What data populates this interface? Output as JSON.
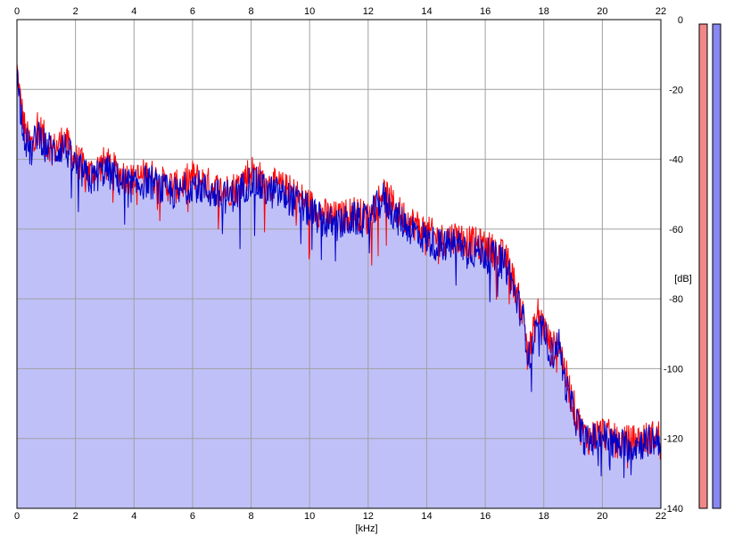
{
  "chart_data": {
    "type": "area",
    "xlabel": "[kHz]",
    "ylabel": "[dB]",
    "xlim": [
      0,
      22
    ],
    "ylim": [
      -140,
      0
    ],
    "x_ticks": [
      "0",
      "2",
      "4",
      "6",
      "8",
      "10",
      "12",
      "14",
      "16",
      "18",
      "20",
      "22"
    ],
    "y_ticks": [
      "0",
      "-20",
      "-40",
      "-60",
      "-80",
      "-100",
      "-120",
      "-140"
    ],
    "grid": true,
    "legend": "none",
    "colors": {
      "fill": "#c0c0f8",
      "left_channel": "#ff0000",
      "right_channel": "#0000c8",
      "meter_left": "#f08888",
      "meter_right": "#8888f0",
      "grid": "#a0a0a0"
    },
    "series": [
      {
        "color": "#ff0000",
        "x": [
          0.0,
          0.1,
          0.3,
          0.5,
          0.7,
          1.0,
          1.3,
          1.6,
          2.0,
          2.5,
          3.0,
          3.5,
          4.0,
          4.5,
          5.0,
          5.5,
          6.0,
          6.5,
          7.0,
          7.5,
          8.0,
          8.5,
          9.0,
          9.5,
          10.0,
          10.5,
          11.0,
          11.5,
          12.0,
          12.5,
          13.0,
          13.5,
          14.0,
          14.5,
          15.0,
          15.5,
          16.0,
          16.5,
          16.8,
          17.0,
          17.3,
          17.5,
          17.8,
          18.0,
          18.3,
          18.5,
          18.7,
          19.0,
          19.3,
          19.5,
          20.0,
          20.5,
          21.0,
          21.5,
          22.0
        ],
        "values": [
          -14,
          -22,
          -33,
          -36,
          -30,
          -35,
          -37,
          -34,
          -40,
          -44,
          -41,
          -44,
          -46,
          -44,
          -47,
          -48,
          -45,
          -47,
          -49,
          -48,
          -43,
          -47,
          -48,
          -50,
          -53,
          -56,
          -57,
          -55,
          -57,
          -49,
          -55,
          -58,
          -61,
          -63,
          -62,
          -64,
          -65,
          -67,
          -70,
          -76,
          -85,
          -95,
          -84,
          -88,
          -95,
          -90,
          -100,
          -110,
          -118,
          -120,
          -118,
          -121,
          -121,
          -120,
          -119
        ]
      },
      {
        "color": "#0000c8",
        "x": [
          0.0,
          0.1,
          0.3,
          0.5,
          0.7,
          1.0,
          1.3,
          1.6,
          2.0,
          2.5,
          3.0,
          3.5,
          4.0,
          4.5,
          5.0,
          5.5,
          6.0,
          6.5,
          7.0,
          7.5,
          8.0,
          8.5,
          9.0,
          9.5,
          10.0,
          10.5,
          11.0,
          11.5,
          12.0,
          12.5,
          13.0,
          13.5,
          14.0,
          14.5,
          15.0,
          15.5,
          16.0,
          16.5,
          16.8,
          17.0,
          17.3,
          17.5,
          17.8,
          18.0,
          18.3,
          18.5,
          18.7,
          19.0,
          19.3,
          19.5,
          20.0,
          20.5,
          21.0,
          21.5,
          22.0
        ],
        "values": [
          -16,
          -24,
          -35,
          -38,
          -32,
          -36,
          -38,
          -36,
          -42,
          -46,
          -43,
          -46,
          -48,
          -46,
          -49,
          -50,
          -47,
          -49,
          -51,
          -50,
          -46,
          -49,
          -50,
          -52,
          -55,
          -58,
          -59,
          -57,
          -58,
          -51,
          -57,
          -60,
          -63,
          -65,
          -64,
          -66,
          -67,
          -69,
          -72,
          -78,
          -86,
          -97,
          -88,
          -90,
          -96,
          -92,
          -103,
          -112,
          -119,
          -121,
          -119,
          -122,
          -122,
          -121,
          -120
        ]
      }
    ],
    "meters": [
      {
        "color": "#f08888",
        "level": 1.0
      },
      {
        "color": "#8888f0",
        "level": 1.0
      }
    ]
  }
}
